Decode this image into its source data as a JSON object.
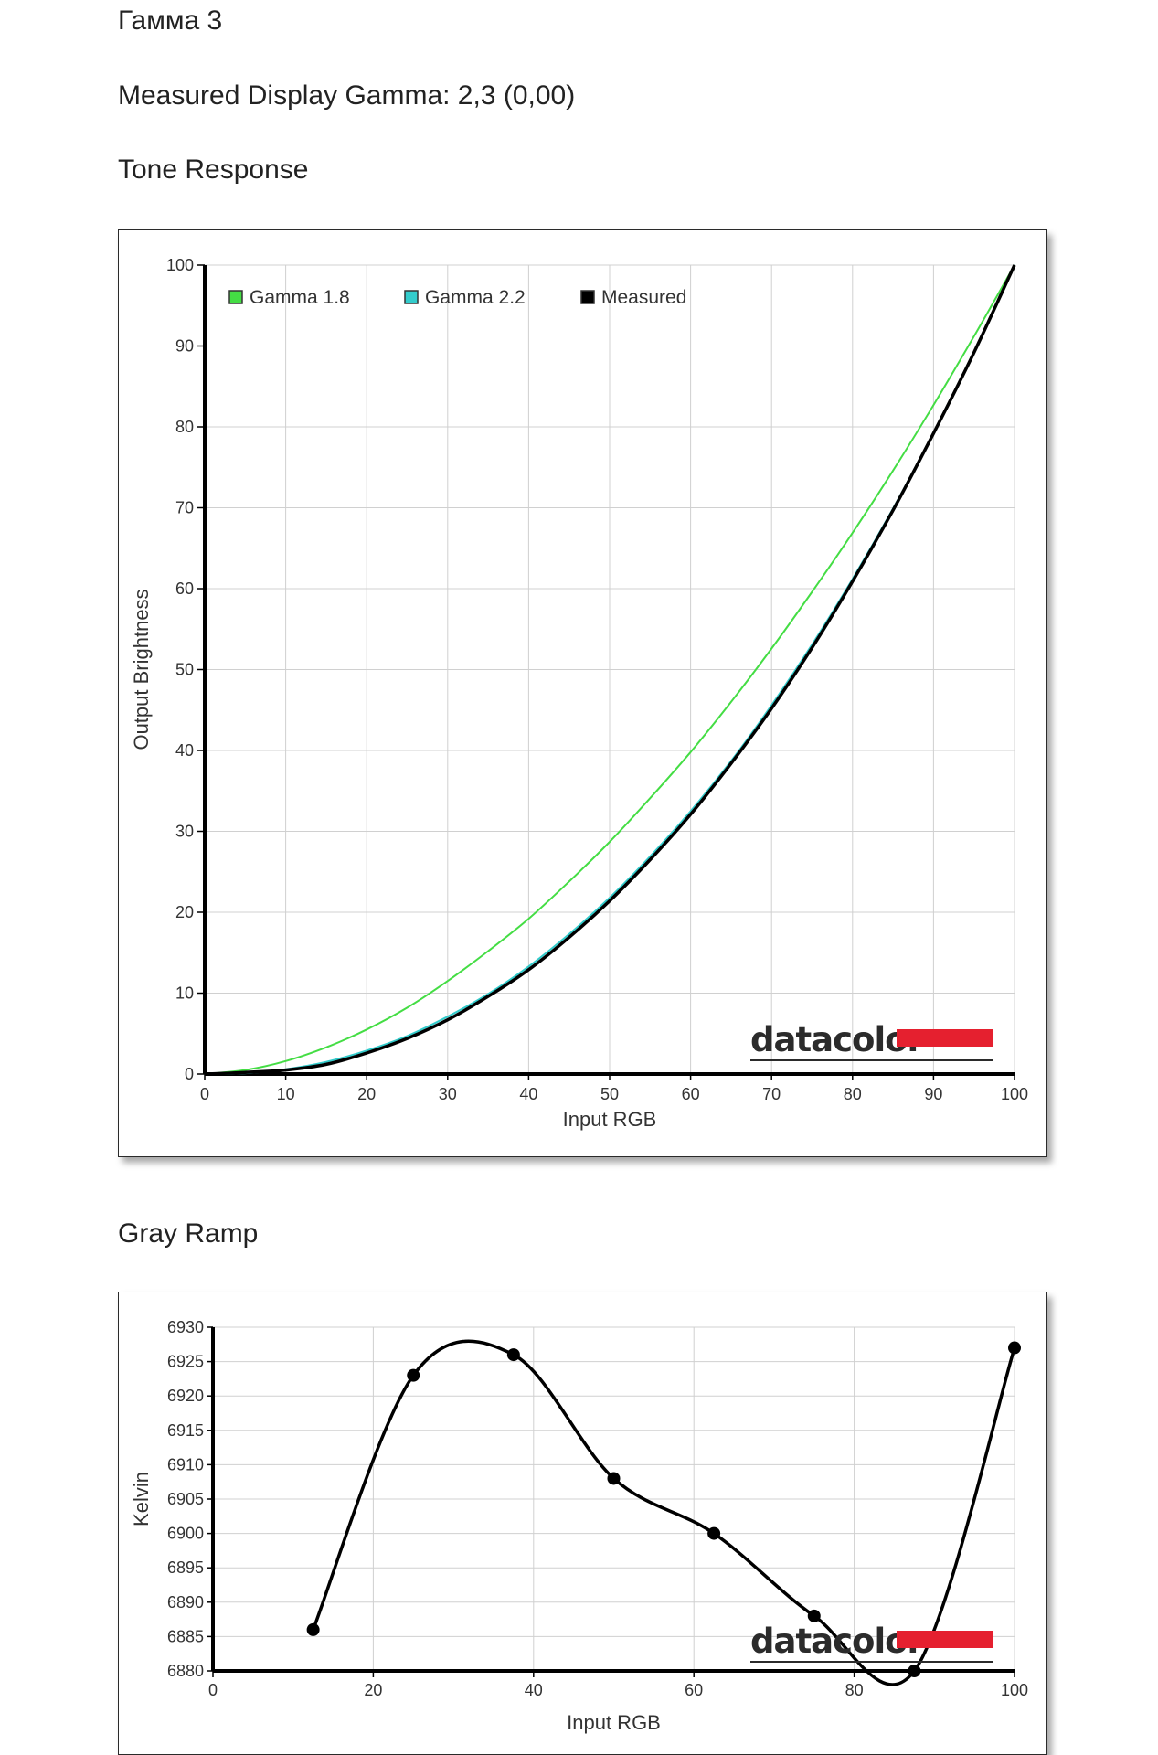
{
  "page": {
    "title": "Гамма 3",
    "gamma_line": "Measured Display Gamma: 2,3 (0,00)",
    "tone_heading": "Tone Response",
    "gray_heading": "Gray Ramp"
  },
  "brand": {
    "text": "datacolor",
    "bar_color": "#e5202f"
  },
  "chart_data": [
    {
      "type": "line",
      "xlabel": "Input RGB",
      "ylabel": "Output Brightness",
      "xlim": [
        0,
        100
      ],
      "ylim": [
        0,
        100
      ],
      "xticks": [
        0,
        10,
        20,
        30,
        40,
        50,
        60,
        70,
        80,
        90,
        100
      ],
      "yticks": [
        0,
        10,
        20,
        30,
        40,
        50,
        60,
        70,
        80,
        90,
        100
      ],
      "grid": true,
      "legend": "top-left",
      "x": [
        0,
        5,
        10,
        15,
        20,
        25,
        30,
        35,
        40,
        45,
        50,
        55,
        60,
        65,
        70,
        75,
        80,
        85,
        90,
        95,
        100
      ],
      "series": [
        {
          "name": "Gamma 1.8",
          "color": "#44dd44",
          "values": [
            0,
            0.5,
            1.6,
            3.3,
            5.5,
            8.2,
            11.5,
            15.2,
            19.2,
            23.8,
            28.7,
            34.1,
            39.8,
            46.0,
            52.6,
            59.6,
            66.9,
            74.6,
            82.7,
            91.2,
            100
          ]
        },
        {
          "name": "Gamma 2.2",
          "color": "#33cccc",
          "values": [
            0,
            0.1,
            0.6,
            1.5,
            2.9,
            4.7,
            7.1,
            9.9,
            13.3,
            17.3,
            21.8,
            26.9,
            32.5,
            38.7,
            45.6,
            53.1,
            61.2,
            69.9,
            79.3,
            89.3,
            100
          ]
        },
        {
          "name": "Measured",
          "color": "#000000",
          "values": [
            0,
            0.2,
            0.5,
            1.2,
            2.6,
            4.4,
            6.7,
            9.6,
            12.9,
            16.9,
            21.4,
            26.5,
            32.1,
            38.4,
            45.2,
            52.7,
            60.9,
            69.7,
            79.2,
            89.2,
            100
          ]
        }
      ]
    },
    {
      "type": "line",
      "xlabel": "Input RGB",
      "ylabel": "Kelvin",
      "xlim": [
        0,
        100
      ],
      "ylim": [
        6880,
        6930
      ],
      "xticks": [
        0,
        20,
        40,
        60,
        80,
        100
      ],
      "yticks": [
        6880,
        6885,
        6890,
        6895,
        6900,
        6905,
        6910,
        6915,
        6920,
        6925,
        6930
      ],
      "grid": true,
      "series": [
        {
          "color": "#000000",
          "x": [
            12.5,
            25,
            37.5,
            50,
            62.5,
            75,
            87.5,
            100
          ],
          "values": [
            6886,
            6923,
            6926,
            6908,
            6900,
            6888,
            6880,
            6927
          ]
        }
      ]
    }
  ]
}
